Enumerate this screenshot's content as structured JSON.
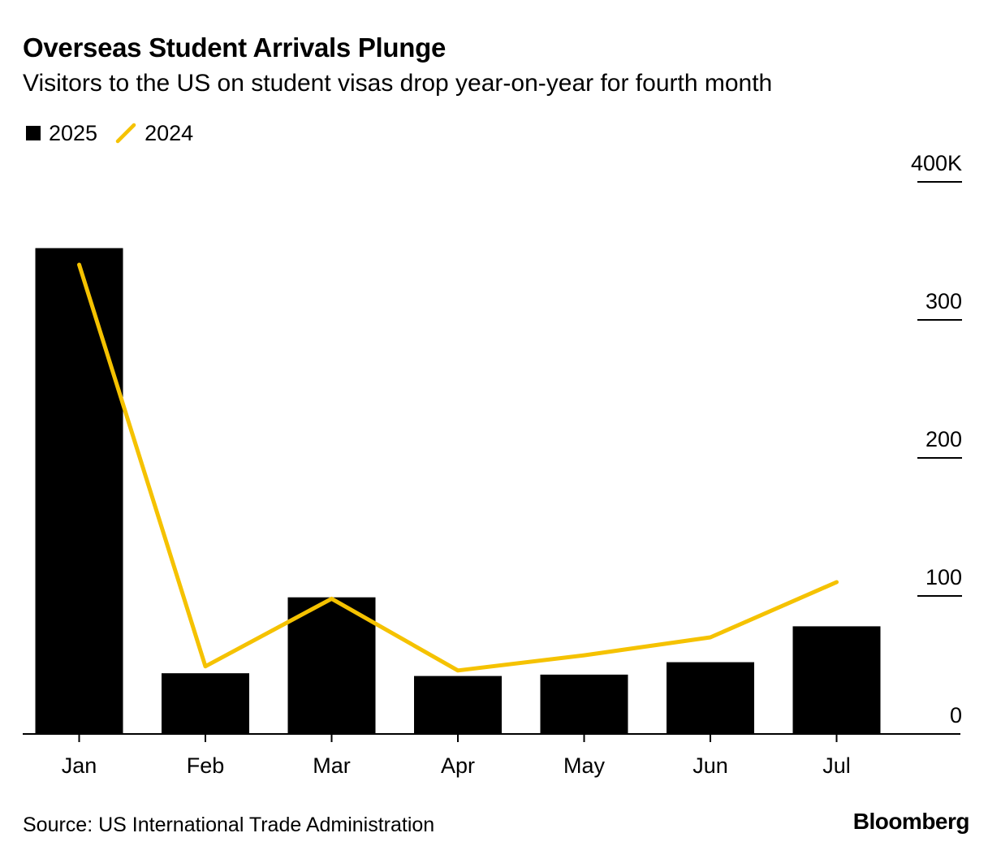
{
  "title": "Overseas Student Arrivals Plunge",
  "subtitle": "Visitors to the US on student visas drop year-on-year for fourth month",
  "legend": {
    "bar_label": "2025",
    "line_label": "2024"
  },
  "source": "Source: US International Trade Administration",
  "brand": "Bloomberg",
  "colors": {
    "bar": "#000000",
    "line": "#f5c200",
    "axis": "#000000"
  },
  "chart_data": {
    "type": "bar",
    "categories": [
      "Jan",
      "Feb",
      "Mar",
      "Apr",
      "May",
      "Jun",
      "Jul"
    ],
    "series": [
      {
        "name": "2025",
        "type": "bar",
        "values": [
          352,
          44,
          99,
          42,
          43,
          52,
          78
        ]
      },
      {
        "name": "2024",
        "type": "line",
        "values": [
          340,
          49,
          98,
          46,
          57,
          70,
          110
        ]
      }
    ],
    "ylim": [
      0,
      400
    ],
    "yticks": [
      0,
      100,
      200,
      300,
      400
    ],
    "ytick_labels": [
      "0",
      "100",
      "200",
      "300",
      "400K"
    ],
    "y_axis_side": "right",
    "grid": false,
    "legend_position": "top-left"
  }
}
